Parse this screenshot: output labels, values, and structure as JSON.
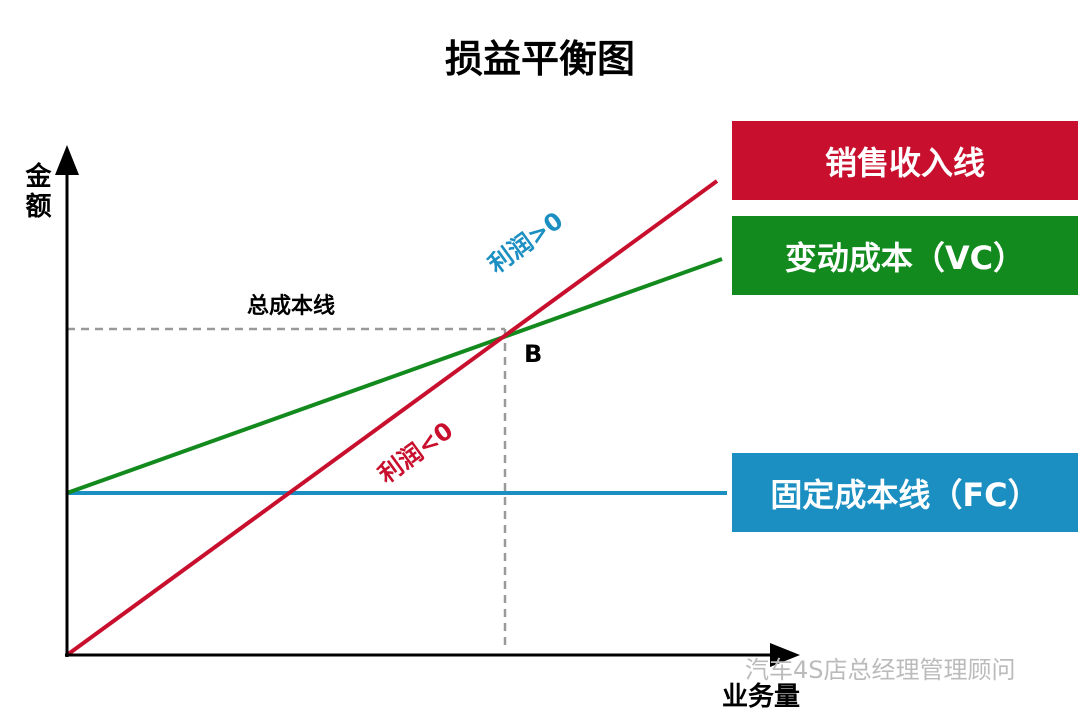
{
  "title": "损益平衡图",
  "axes": {
    "y_label": "金额",
    "x_label": "业务量"
  },
  "annotations": {
    "total_cost": "总成本线",
    "profit_positive": "利润>0",
    "profit_negative": "利润<0",
    "point": "B"
  },
  "legend": [
    {
      "label": "销售收入线",
      "color": "#c8102e"
    },
    {
      "label": "变动成本（VC）",
      "color": "#138a1e"
    },
    {
      "label": "固定成本线（FC）",
      "color": "#1b8fc2"
    }
  ],
  "watermark": "汽车4S店总经理管理顾问"
}
